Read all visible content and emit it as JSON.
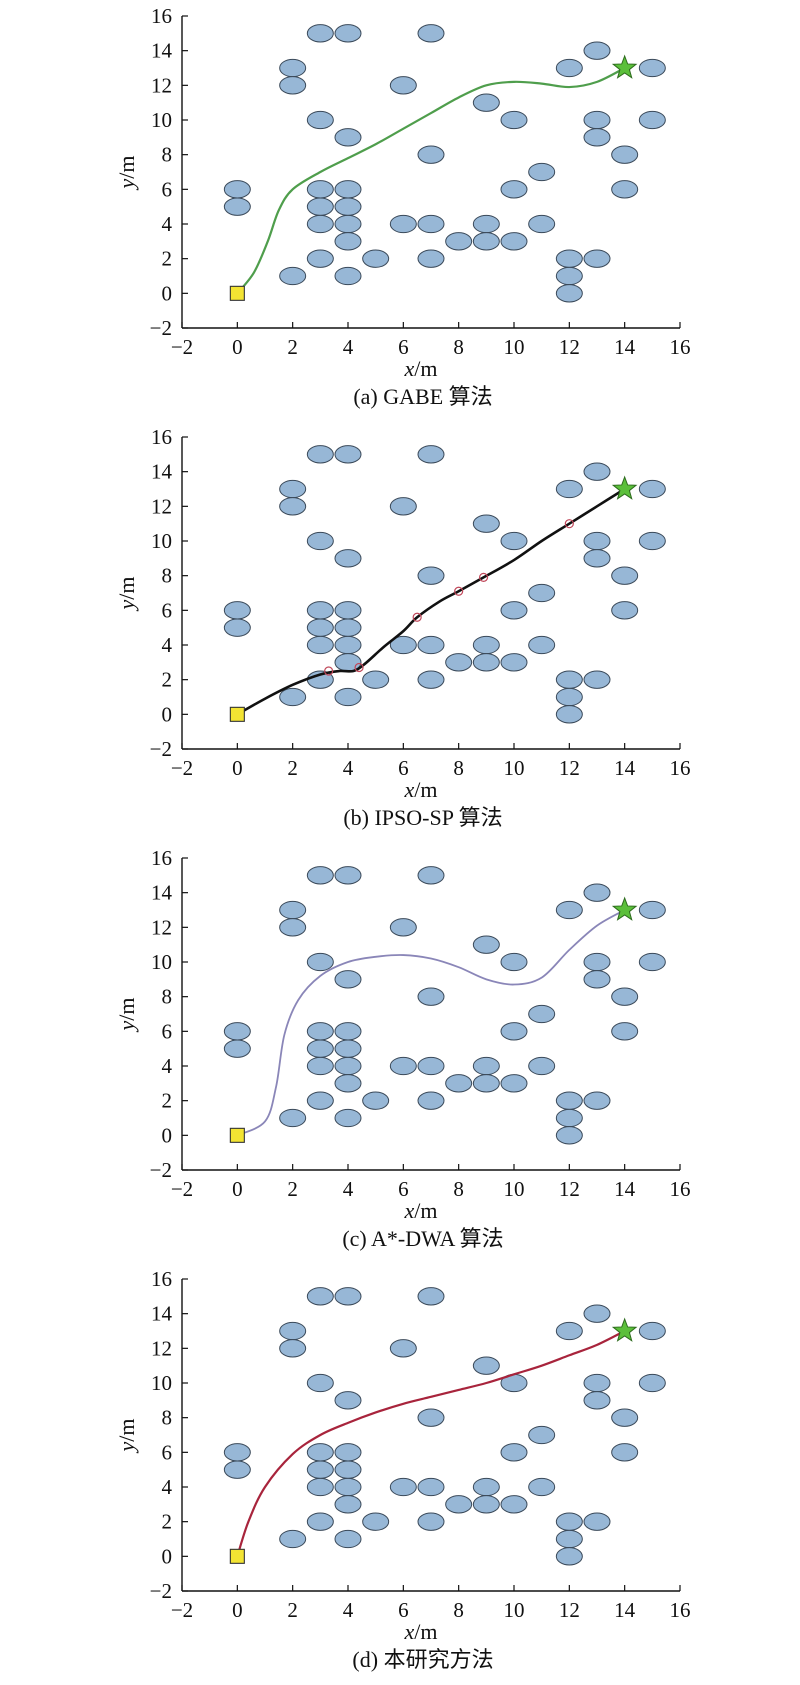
{
  "obstacles_ellipse_shape": "light-blue ellipse",
  "colors": {
    "obstacle_fill": "#97b7d6",
    "obstacle_stroke": "#3b4a5a",
    "start_fill": "#f3e433",
    "goal_fill": "#5bbf3a",
    "axis": "#111111"
  },
  "chart_data": [
    {
      "type": "line",
      "caption": "(a) GABE 算法",
      "xlabel_var": "x",
      "xlabel_unit": "/m",
      "ylabel_var": "y",
      "ylabel_unit": "/m",
      "xlim": [
        -2,
        16
      ],
      "ylim": [
        -2,
        16
      ],
      "xticks": [
        "−2",
        "0",
        "2",
        "4",
        "6",
        "8",
        "10",
        "12",
        "14",
        "16"
      ],
      "yticks": [
        "−2",
        "0",
        "2",
        "4",
        "6",
        "8",
        "10",
        "12",
        "14",
        "16"
      ],
      "grid": false,
      "start": [
        0,
        0
      ],
      "goal": [
        14,
        13
      ],
      "obstacles": [
        [
          3,
          15
        ],
        [
          4,
          15
        ],
        [
          7,
          15
        ],
        [
          13,
          14
        ],
        [
          2,
          13
        ],
        [
          12,
          13
        ],
        [
          15,
          13
        ],
        [
          2,
          12
        ],
        [
          6,
          12
        ],
        [
          9,
          11
        ],
        [
          3,
          10
        ],
        [
          10,
          10
        ],
        [
          13,
          10
        ],
        [
          15,
          10
        ],
        [
          4,
          9
        ],
        [
          13,
          9
        ],
        [
          7,
          8
        ],
        [
          14,
          8
        ],
        [
          11,
          7
        ],
        [
          0,
          6
        ],
        [
          3,
          6
        ],
        [
          4,
          6
        ],
        [
          10,
          6
        ],
        [
          14,
          6
        ],
        [
          0,
          5
        ],
        [
          3,
          5
        ],
        [
          4,
          5
        ],
        [
          3,
          4
        ],
        [
          4,
          4
        ],
        [
          6,
          4
        ],
        [
          7,
          4
        ],
        [
          9,
          4
        ],
        [
          11,
          4
        ],
        [
          4,
          3
        ],
        [
          8,
          3
        ],
        [
          9,
          3
        ],
        [
          10,
          3
        ],
        [
          3,
          2
        ],
        [
          5,
          2
        ],
        [
          7,
          2
        ],
        [
          12,
          2
        ],
        [
          13,
          2
        ],
        [
          2,
          1
        ],
        [
          4,
          1
        ],
        [
          12,
          1
        ],
        [
          12,
          0
        ]
      ],
      "series": [
        {
          "color": "#4f9e4c",
          "width": 2.2,
          "markers": [],
          "x": [
            0,
            0.6,
            1.1,
            1.5,
            2,
            3,
            4,
            5,
            6,
            7,
            8,
            9,
            10,
            11,
            12,
            13,
            14
          ],
          "y": [
            0,
            1.2,
            3.0,
            4.8,
            6.0,
            7.0,
            7.8,
            8.6,
            9.5,
            10.4,
            11.3,
            12.0,
            12.2,
            12.1,
            11.9,
            12.2,
            13
          ]
        }
      ]
    },
    {
      "type": "line",
      "caption": "(b) IPSO-SP 算法",
      "xlabel_var": "x",
      "xlabel_unit": "/m",
      "ylabel_var": "y",
      "ylabel_unit": "/m",
      "xlim": [
        -2,
        16
      ],
      "ylim": [
        -2,
        16
      ],
      "xticks": [
        "−2",
        "0",
        "2",
        "4",
        "6",
        "8",
        "10",
        "12",
        "14",
        "16"
      ],
      "yticks": [
        "−2",
        "0",
        "2",
        "4",
        "6",
        "8",
        "10",
        "12",
        "14",
        "16"
      ],
      "grid": false,
      "start": [
        0,
        0
      ],
      "goal": [
        14,
        13
      ],
      "obstacles": [
        [
          3,
          15
        ],
        [
          4,
          15
        ],
        [
          7,
          15
        ],
        [
          13,
          14
        ],
        [
          2,
          13
        ],
        [
          12,
          13
        ],
        [
          15,
          13
        ],
        [
          2,
          12
        ],
        [
          6,
          12
        ],
        [
          9,
          11
        ],
        [
          3,
          10
        ],
        [
          10,
          10
        ],
        [
          13,
          10
        ],
        [
          15,
          10
        ],
        [
          4,
          9
        ],
        [
          13,
          9
        ],
        [
          7,
          8
        ],
        [
          14,
          8
        ],
        [
          11,
          7
        ],
        [
          0,
          6
        ],
        [
          3,
          6
        ],
        [
          4,
          6
        ],
        [
          10,
          6
        ],
        [
          14,
          6
        ],
        [
          0,
          5
        ],
        [
          3,
          5
        ],
        [
          4,
          5
        ],
        [
          3,
          4
        ],
        [
          4,
          4
        ],
        [
          6,
          4
        ],
        [
          7,
          4
        ],
        [
          9,
          4
        ],
        [
          11,
          4
        ],
        [
          4,
          3
        ],
        [
          8,
          3
        ],
        [
          9,
          3
        ],
        [
          10,
          3
        ],
        [
          3,
          2
        ],
        [
          5,
          2
        ],
        [
          7,
          2
        ],
        [
          12,
          2
        ],
        [
          13,
          2
        ],
        [
          2,
          1
        ],
        [
          4,
          1
        ],
        [
          12,
          1
        ],
        [
          12,
          0
        ]
      ],
      "series": [
        {
          "color": "#111111",
          "width": 2.6,
          "markers": [
            [
              3.3,
              2.5
            ],
            [
              4.4,
              2.7
            ],
            [
              6.5,
              5.6
            ],
            [
              8,
              7.1
            ],
            [
              8.9,
              7.9
            ],
            [
              12,
              11
            ]
          ],
          "x": [
            0,
            1,
            2,
            3,
            3.7,
            4.2,
            4.6,
            5.3,
            6,
            6.5,
            7.3,
            8,
            8.9,
            10,
            11,
            12,
            13,
            14
          ],
          "y": [
            0,
            0.9,
            1.7,
            2.3,
            2.5,
            2.5,
            2.9,
            3.9,
            4.8,
            5.6,
            6.5,
            7.1,
            7.9,
            8.9,
            10,
            11,
            12,
            13
          ]
        }
      ]
    },
    {
      "type": "line",
      "caption": "(c) A*-DWA 算法",
      "xlabel_var": "x",
      "xlabel_unit": "/m",
      "ylabel_var": "y",
      "ylabel_unit": "/m",
      "xlim": [
        -2,
        16
      ],
      "ylim": [
        -2,
        16
      ],
      "xticks": [
        "−2",
        "0",
        "2",
        "4",
        "6",
        "8",
        "10",
        "12",
        "14",
        "16"
      ],
      "yticks": [
        "−2",
        "0",
        "2",
        "4",
        "6",
        "8",
        "10",
        "12",
        "14",
        "16"
      ],
      "grid": false,
      "start": [
        0,
        0
      ],
      "goal": [
        14,
        13
      ],
      "obstacles": [
        [
          3,
          15
        ],
        [
          4,
          15
        ],
        [
          7,
          15
        ],
        [
          13,
          14
        ],
        [
          2,
          13
        ],
        [
          12,
          13
        ],
        [
          15,
          13
        ],
        [
          2,
          12
        ],
        [
          6,
          12
        ],
        [
          9,
          11
        ],
        [
          3,
          10
        ],
        [
          10,
          10
        ],
        [
          13,
          10
        ],
        [
          15,
          10
        ],
        [
          4,
          9
        ],
        [
          13,
          9
        ],
        [
          7,
          8
        ],
        [
          14,
          8
        ],
        [
          11,
          7
        ],
        [
          0,
          6
        ],
        [
          3,
          6
        ],
        [
          4,
          6
        ],
        [
          10,
          6
        ],
        [
          14,
          6
        ],
        [
          0,
          5
        ],
        [
          3,
          5
        ],
        [
          4,
          5
        ],
        [
          3,
          4
        ],
        [
          4,
          4
        ],
        [
          6,
          4
        ],
        [
          7,
          4
        ],
        [
          9,
          4
        ],
        [
          11,
          4
        ],
        [
          4,
          3
        ],
        [
          8,
          3
        ],
        [
          9,
          3
        ],
        [
          10,
          3
        ],
        [
          3,
          2
        ],
        [
          5,
          2
        ],
        [
          7,
          2
        ],
        [
          12,
          2
        ],
        [
          13,
          2
        ],
        [
          2,
          1
        ],
        [
          4,
          1
        ],
        [
          12,
          1
        ],
        [
          12,
          0
        ]
      ],
      "series": [
        {
          "color": "#8a86b8",
          "width": 1.8,
          "markers": [],
          "x": [
            0,
            1,
            1.4,
            1.7,
            2.2,
            3,
            4,
            5,
            6,
            7,
            8,
            9,
            10,
            11,
            12,
            13,
            14
          ],
          "y": [
            0,
            0.8,
            2.8,
            5.8,
            7.8,
            9.2,
            10,
            10.3,
            10.4,
            10.2,
            9.7,
            9,
            8.7,
            9.1,
            10.7,
            12.1,
            13
          ]
        }
      ]
    },
    {
      "type": "line",
      "caption": "(d) 本研究方法",
      "xlabel_var": "x",
      "xlabel_unit": "/m",
      "ylabel_var": "y",
      "ylabel_unit": "/m",
      "xlim": [
        -2,
        16
      ],
      "ylim": [
        -2,
        16
      ],
      "xticks": [
        "−2",
        "0",
        "2",
        "4",
        "6",
        "8",
        "10",
        "12",
        "14",
        "16"
      ],
      "yticks": [
        "−2",
        "0",
        "2",
        "4",
        "6",
        "8",
        "10",
        "12",
        "14",
        "16"
      ],
      "grid": false,
      "start": [
        0,
        0
      ],
      "goal": [
        14,
        13
      ],
      "obstacles": [
        [
          3,
          15
        ],
        [
          4,
          15
        ],
        [
          7,
          15
        ],
        [
          13,
          14
        ],
        [
          2,
          13
        ],
        [
          12,
          13
        ],
        [
          15,
          13
        ],
        [
          2,
          12
        ],
        [
          6,
          12
        ],
        [
          9,
          11
        ],
        [
          3,
          10
        ],
        [
          10,
          10
        ],
        [
          13,
          10
        ],
        [
          15,
          10
        ],
        [
          4,
          9
        ],
        [
          13,
          9
        ],
        [
          7,
          8
        ],
        [
          14,
          8
        ],
        [
          11,
          7
        ],
        [
          0,
          6
        ],
        [
          3,
          6
        ],
        [
          4,
          6
        ],
        [
          10,
          6
        ],
        [
          14,
          6
        ],
        [
          0,
          5
        ],
        [
          3,
          5
        ],
        [
          4,
          5
        ],
        [
          3,
          4
        ],
        [
          4,
          4
        ],
        [
          6,
          4
        ],
        [
          7,
          4
        ],
        [
          9,
          4
        ],
        [
          11,
          4
        ],
        [
          4,
          3
        ],
        [
          8,
          3
        ],
        [
          9,
          3
        ],
        [
          10,
          3
        ],
        [
          3,
          2
        ],
        [
          5,
          2
        ],
        [
          7,
          2
        ],
        [
          12,
          2
        ],
        [
          13,
          2
        ],
        [
          2,
          1
        ],
        [
          4,
          1
        ],
        [
          12,
          1
        ],
        [
          12,
          0
        ]
      ],
      "series": [
        {
          "color": "#a8243c",
          "width": 2.2,
          "markers": [],
          "x": [
            0,
            0.4,
            1,
            2,
            3,
            4,
            5,
            6,
            7,
            8,
            9,
            10,
            11,
            12,
            13,
            14
          ],
          "y": [
            0,
            2,
            4,
            5.9,
            7,
            7.7,
            8.3,
            8.8,
            9.2,
            9.6,
            10,
            10.5,
            11,
            11.6,
            12.2,
            13
          ]
        }
      ]
    }
  ]
}
